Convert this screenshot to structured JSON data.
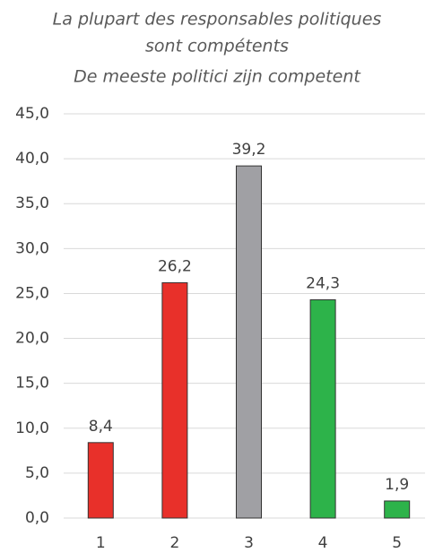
{
  "chart_data": {
    "type": "bar",
    "title": [
      "La plupart des responsables politiques",
      "sont compétents",
      "De meeste politici zijn competent"
    ],
    "categories": [
      "1",
      "2",
      "3",
      "4",
      "5"
    ],
    "values": [
      8.4,
      26.2,
      39.2,
      24.3,
      1.9
    ],
    "value_labels": [
      "8,4",
      "26,2",
      "39,2",
      "24,3",
      "1,9"
    ],
    "colors": [
      "#e8302a",
      "#e8302a",
      "#a0a0a4",
      "#2db34a",
      "#2db34a"
    ],
    "ylim": [
      0,
      45
    ],
    "yticks": [
      {
        "value": 0,
        "label": "0,0"
      },
      {
        "value": 5,
        "label": "5,0"
      },
      {
        "value": 10,
        "label": "10,0"
      },
      {
        "value": 15,
        "label": "15,0"
      },
      {
        "value": 20,
        "label": "20,0"
      },
      {
        "value": 25,
        "label": "25,0"
      },
      {
        "value": 30,
        "label": "30,0"
      },
      {
        "value": 35,
        "label": "35,0"
      },
      {
        "value": 40,
        "label": "40,0"
      },
      {
        "value": 45,
        "label": "45,0"
      }
    ],
    "grid": true
  }
}
